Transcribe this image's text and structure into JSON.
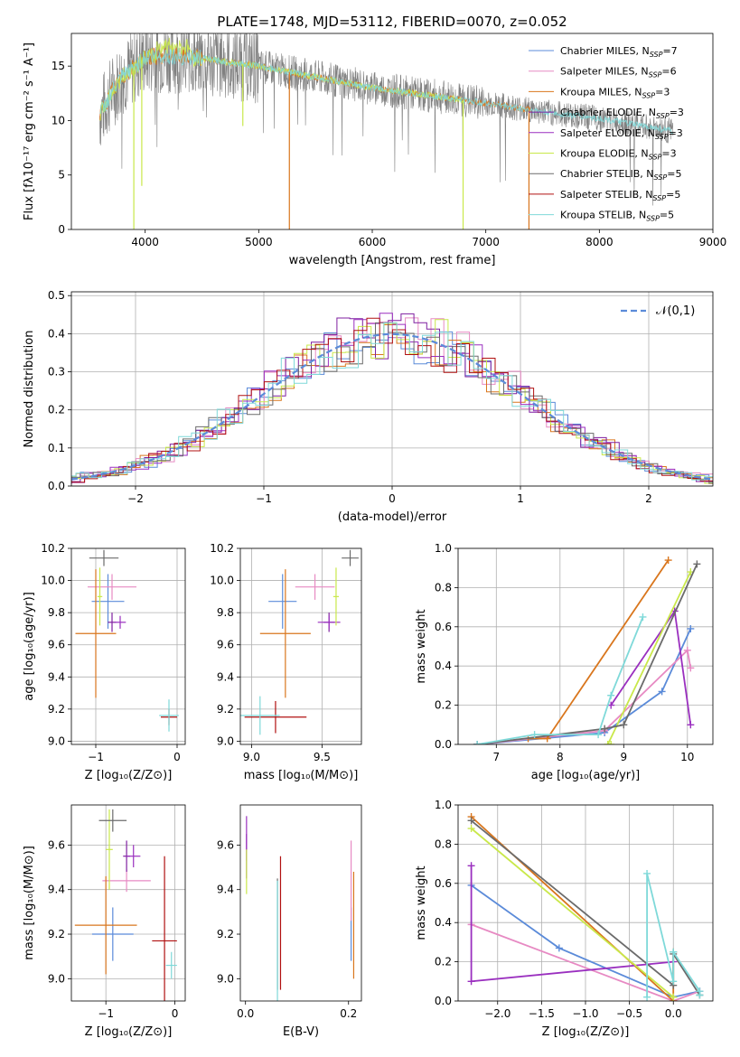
{
  "colors": {
    "Chabrier MILES": "#5b8bd9",
    "Salpeter MILES": "#e78ac3",
    "Kroupa MILES": "#d9761d",
    "Chabrier ELODIE": "#7f1fa0",
    "Salpeter ELODIE": "#9a2fbf",
    "Kroupa ELODIE": "#c9e84a",
    "Chabrier STELIB": "#6b6b6b",
    "Salpeter STELIB": "#b01010",
    "Kroupa STELIB": "#7fd9d9",
    "gaussian": "#5b8bd9"
  },
  "chart_data": [
    {
      "id": "spectrum",
      "type": "line",
      "title": "PLATE=1748, MJD=53112, FIBERID=0070, z=0.052",
      "xlabel": "wavelength [Angstrom, rest frame]",
      "ylabel": "Flux [fλ10⁻¹⁷ erg cm⁻² s⁻¹ A⁻¹]",
      "xlim": [
        3350,
        9000
      ],
      "ylim": [
        0,
        18
      ],
      "xticks": [
        4000,
        5000,
        6000,
        7000,
        8000,
        9000
      ],
      "yticks": [
        0,
        5,
        10,
        15
      ],
      "grid": false,
      "legend": "top-right",
      "series": [
        {
          "name": "Chabrier MILES, N_SSP=7",
          "sub": "SSP",
          "eq": "=7"
        },
        {
          "name": "Salpeter MILES, N_SSP=6",
          "sub": "SSP",
          "eq": "=6"
        },
        {
          "name": "Kroupa MILES, N_SSP=3",
          "sub": "SSP",
          "eq": "=3"
        },
        {
          "name": "Chabrier ELODIE, N_SSP=3",
          "sub": "SSP",
          "eq": "=3"
        },
        {
          "name": "Salpeter ELODIE, N_SSP=3",
          "sub": "SSP",
          "eq": "=3"
        },
        {
          "name": "Kroupa ELODIE, N_SSP=3",
          "sub": "SSP",
          "eq": "=3"
        },
        {
          "name": "Chabrier STELIB, N_SSP=5",
          "sub": "SSP",
          "eq": "=5"
        },
        {
          "name": "Salpeter STELIB, N_SSP=5",
          "sub": "SSP",
          "eq": "=5"
        },
        {
          "name": "Kroupa STELIB, N_SSP=5",
          "sub": "SSP",
          "eq": "=5"
        }
      ],
      "legend_prefix": [
        "Chabrier MILES, N",
        "Salpeter MILES, N",
        "Kroupa MILES, N",
        "Chabrier ELODIE, N",
        "Salpeter ELODIE, N",
        "Kroupa ELODIE, N",
        "Chabrier STELIB, N",
        "Salpeter STELIB, N",
        "Kroupa STELIB, N"
      ],
      "continuum": [
        [
          3600,
          10.5
        ],
        [
          3700,
          12.5
        ],
        [
          3800,
          14
        ],
        [
          4000,
          15.8
        ],
        [
          4200,
          16
        ],
        [
          4500,
          15.7
        ],
        [
          5000,
          15
        ],
        [
          5500,
          14
        ],
        [
          6000,
          13
        ],
        [
          6500,
          12.3
        ],
        [
          7000,
          11.6
        ],
        [
          7500,
          10.8
        ],
        [
          8000,
          10.2
        ],
        [
          8500,
          9.3
        ],
        [
          8650,
          9.0
        ]
      ],
      "dips": [
        [
          3900,
          0
        ],
        [
          3970,
          4
        ],
        [
          4860,
          9.5
        ],
        [
          5270,
          0
        ],
        [
          6800,
          0
        ],
        [
          7380,
          0
        ]
      ]
    },
    {
      "id": "residuals",
      "type": "line",
      "xlabel": "(data-model)/error",
      "ylabel": "Normed distribution",
      "xlim": [
        -2.5,
        2.5
      ],
      "ylim": [
        0,
        0.51
      ],
      "xticks": [
        -2,
        -1,
        0,
        1,
        2
      ],
      "yticks": [
        0.0,
        0.1,
        0.2,
        0.3,
        0.4,
        0.5
      ],
      "grid": true,
      "legend": "top-right",
      "legend_label": "𝒩(0,1)",
      "gaussian": {
        "mean": 0,
        "sigma": 1
      },
      "bin_width": 0.1
    },
    {
      "id": "age-vs-Z",
      "type": "scatter",
      "xlabel": "Z [log₁₀(Z/Z⊙)]",
      "ylabel": "age  [log₁₀(age/yr)]",
      "xlim": [
        -1.3,
        0.1
      ],
      "ylim": [
        8.98,
        10.2
      ],
      "xticks": [
        -1,
        0
      ],
      "yticks": [
        9.0,
        9.2,
        9.4,
        9.6,
        9.8,
        10.0,
        10.2
      ],
      "grid": true,
      "points": [
        {
          "s": "Chabrier MILES",
          "x": -0.85,
          "y": 9.87,
          "xe": 0.2,
          "ye": 0.17
        },
        {
          "s": "Salpeter MILES",
          "x": -0.8,
          "y": 9.96,
          "xe": 0.3,
          "ye": 0.08
        },
        {
          "s": "Kroupa MILES",
          "x": -1.0,
          "y": 9.67,
          "xe": 0.25,
          "ye": 0.4
        },
        {
          "s": "Chabrier ELODIE",
          "x": -0.8,
          "y": 9.74,
          "xe": 0.05,
          "ye": 0.06
        },
        {
          "s": "Salpeter ELODIE",
          "x": -0.7,
          "y": 9.74,
          "xe": 0.07,
          "ye": 0.04
        },
        {
          "s": "Kroupa ELODIE",
          "x": -0.95,
          "y": 9.9,
          "xe": 0.03,
          "ye": 0.18
        },
        {
          "s": "Chabrier STELIB",
          "x": -0.9,
          "y": 10.14,
          "xe": 0.18,
          "ye": 0.05
        },
        {
          "s": "Salpeter STELIB",
          "x": -0.1,
          "y": 9.15,
          "xe": 0.1,
          "ye": 0.05
        },
        {
          "s": "Kroupa STELIB",
          "x": -0.1,
          "y": 9.16,
          "xe": 0.12,
          "ye": 0.1
        }
      ]
    },
    {
      "id": "age-vs-mass",
      "type": "scatter",
      "xlabel": "mass [log₁₀(M/M⊙)]",
      "ylabel": "",
      "xlim": [
        8.92,
        9.78
      ],
      "ylim": [
        8.98,
        10.2
      ],
      "xticks": [
        9.0,
        9.5
      ],
      "yticks": [
        9.0,
        9.2,
        9.4,
        9.6,
        9.8,
        10.0,
        10.2
      ],
      "grid": true,
      "points": [
        {
          "s": "Chabrier MILES",
          "x": 9.22,
          "y": 9.87,
          "xe": 0.1,
          "ye": 0.17
        },
        {
          "s": "Salpeter MILES",
          "x": 9.45,
          "y": 9.96,
          "xe": 0.14,
          "ye": 0.08
        },
        {
          "s": "Kroupa MILES",
          "x": 9.24,
          "y": 9.67,
          "xe": 0.18,
          "ye": 0.4
        },
        {
          "s": "Chabrier ELODIE",
          "x": 9.55,
          "y": 9.74,
          "xe": 0.04,
          "ye": 0.06
        },
        {
          "s": "Salpeter ELODIE",
          "x": 9.55,
          "y": 9.74,
          "xe": 0.08,
          "ye": 0.04
        },
        {
          "s": "Kroupa ELODIE",
          "x": 9.6,
          "y": 9.9,
          "xe": 0.02,
          "ye": 0.18
        },
        {
          "s": "Chabrier STELIB",
          "x": 9.7,
          "y": 10.14,
          "xe": 0.06,
          "ye": 0.05
        },
        {
          "s": "Salpeter STELIB",
          "x": 9.17,
          "y": 9.15,
          "xe": 0.22,
          "ye": 0.1
        },
        {
          "s": "Kroupa STELIB",
          "x": 9.06,
          "y": 9.16,
          "xe": 0.14,
          "ye": 0.12
        }
      ]
    },
    {
      "id": "weight-vs-age",
      "type": "line",
      "xlabel": "age  [log₁₀(age/yr)]",
      "ylabel": "mass weight",
      "xlim": [
        6.4,
        10.4
      ],
      "ylim": [
        0,
        1.0
      ],
      "xticks": [
        7,
        8,
        9,
        10
      ],
      "yticks": [
        0.0,
        0.2,
        0.4,
        0.6,
        0.8,
        1.0
      ],
      "grid": true,
      "series": [
        {
          "s": "Chabrier MILES",
          "x": [
            6.7,
            8.7,
            9.6,
            10.05
          ],
          "y": [
            0.0,
            0.06,
            0.27,
            0.59
          ]
        },
        {
          "s": "Salpeter MILES",
          "x": [
            6.7,
            8.7,
            10.0,
            10.05
          ],
          "y": [
            0.0,
            0.07,
            0.48,
            0.39
          ]
        },
        {
          "s": "Kroupa MILES",
          "x": [
            7.5,
            7.8,
            9.7
          ],
          "y": [
            0.03,
            0.03,
            0.94
          ]
        },
        {
          "s": "Salpeter ELODIE",
          "x": [
            8.8,
            9.8,
            10.05
          ],
          "y": [
            0.2,
            0.68,
            0.1
          ]
        },
        {
          "s": "Kroupa ELODIE",
          "x": [
            8.8,
            8.75,
            10.05
          ],
          "y": [
            0.0,
            0.0,
            0.88
          ]
        },
        {
          "s": "Chabrier STELIB",
          "x": [
            6.7,
            8.7,
            9.0,
            10.15
          ],
          "y": [
            0.0,
            0.08,
            0.1,
            0.92
          ]
        },
        {
          "s": "Kroupa STELIB",
          "x": [
            6.7,
            7.6,
            8.6,
            8.8,
            9.3
          ],
          "y": [
            0.0,
            0.05,
            0.05,
            0.25,
            0.65
          ]
        }
      ]
    },
    {
      "id": "mass-vs-Z",
      "type": "scatter",
      "xlabel": "Z [log₁₀(Z/Z⊙)]",
      "ylabel": "mass [log₁₀(M/M⊙)]",
      "xlim": [
        -1.5,
        0.15
      ],
      "ylim": [
        8.9,
        9.78
      ],
      "xticks": [
        -1,
        0
      ],
      "yticks": [
        9.0,
        9.2,
        9.4,
        9.6
      ],
      "grid": true,
      "points": [
        {
          "s": "Chabrier MILES",
          "x": -0.9,
          "y": 9.2,
          "xe": 0.3,
          "ye": 0.12
        },
        {
          "s": "Salpeter MILES",
          "x": -0.7,
          "y": 9.44,
          "xe": 0.35,
          "ye": 0.05
        },
        {
          "s": "Kroupa MILES",
          "x": -1.0,
          "y": 9.24,
          "xe": 0.45,
          "ye": 0.22
        },
        {
          "s": "Chabrier ELODIE",
          "x": -0.7,
          "y": 9.55,
          "xe": 0.05,
          "ye": 0.07
        },
        {
          "s": "Salpeter ELODIE",
          "x": -0.6,
          "y": 9.55,
          "xe": 0.1,
          "ye": 0.05
        },
        {
          "s": "Kroupa ELODIE",
          "x": -0.95,
          "y": 9.58,
          "xe": 0.05,
          "ye": 0.18
        },
        {
          "s": "Chabrier STELIB",
          "x": -0.9,
          "y": 9.71,
          "xe": 0.2,
          "ye": 0.05
        },
        {
          "s": "Salpeter STELIB",
          "x": -0.15,
          "y": 9.17,
          "xe": 0.18,
          "ye": 0.38
        },
        {
          "s": "Kroupa STELIB",
          "x": -0.05,
          "y": 9.06,
          "xe": 0.08,
          "ye": 0.06
        }
      ]
    },
    {
      "id": "mass-vs-ebv",
      "type": "scatter",
      "xlabel": "E(B-V)",
      "ylabel": "",
      "xlim": [
        -0.01,
        0.225
      ],
      "ylim": [
        8.9,
        9.78
      ],
      "xticks": [
        0.0,
        0.2
      ],
      "yticks": [
        9.0,
        9.2,
        9.4,
        9.6
      ],
      "grid": false,
      "points": [
        {
          "s": "Chabrier MILES",
          "x": 0.205,
          "y": 9.2,
          "xe": 0,
          "ye": 0.12
        },
        {
          "s": "Salpeter MILES",
          "x": 0.205,
          "y": 9.44,
          "xe": 0,
          "ye": 0.18
        },
        {
          "s": "Kroupa MILES",
          "x": 0.21,
          "y": 9.24,
          "xe": 0,
          "ye": 0.24
        },
        {
          "s": "Chabrier ELODIE",
          "x": 0.002,
          "y": 9.55,
          "xe": 0,
          "ye": 0.1
        },
        {
          "s": "Salpeter ELODIE",
          "x": 0.002,
          "y": 9.63,
          "xe": 0,
          "ye": 0.1
        },
        {
          "s": "Kroupa ELODIE",
          "x": 0.002,
          "y": 9.48,
          "xe": 0,
          "ye": 0.1
        },
        {
          "s": "Chabrier STELIB",
          "x": 0.062,
          "y": 9.2,
          "xe": 0,
          "ye": 0.25
        },
        {
          "s": "Salpeter STELIB",
          "x": 0.068,
          "y": 9.25,
          "xe": 0,
          "ye": 0.3
        },
        {
          "s": "Kroupa STELIB",
          "x": 0.062,
          "y": 9.17,
          "xe": 0,
          "ye": 0.27
        }
      ]
    },
    {
      "id": "weight-vs-Z",
      "type": "line",
      "xlabel": "Z [log₁₀(Z/Z⊙)]",
      "ylabel": "mass weight",
      "xlim": [
        -2.45,
        0.45
      ],
      "ylim": [
        0,
        1.0
      ],
      "xticks": [
        -2.0,
        -1.5,
        -1.0,
        -0.5,
        0.0
      ],
      "yticks": [
        0.0,
        0.2,
        0.4,
        0.6,
        0.8,
        1.0
      ],
      "grid": true,
      "series": [
        {
          "s": "Chabrier MILES",
          "x": [
            -2.3,
            -1.3,
            0.0,
            0.3
          ],
          "y": [
            0.59,
            0.27,
            0.02,
            0.05
          ]
        },
        {
          "s": "Salpeter MILES",
          "x": [
            -2.3,
            0.0,
            0.3
          ],
          "y": [
            0.39,
            0.0,
            0.05
          ]
        },
        {
          "s": "Kroupa MILES",
          "x": [
            -2.3,
            0.0,
            0.0
          ],
          "y": [
            0.94,
            0.0,
            0.25
          ]
        },
        {
          "s": "Salpeter ELODIE",
          "x": [
            -2.3,
            -2.3,
            0.0
          ],
          "y": [
            0.69,
            0.1,
            0.2
          ]
        },
        {
          "s": "Kroupa ELODIE",
          "x": [
            -2.3,
            0.0
          ],
          "y": [
            0.88,
            0.02
          ]
        },
        {
          "s": "Chabrier STELIB",
          "x": [
            -2.3,
            0.0,
            0.0,
            0.3
          ],
          "y": [
            0.92,
            0.08,
            0.24,
            0.03
          ]
        },
        {
          "s": "Kroupa STELIB",
          "x": [
            -0.3,
            -0.3,
            0.0,
            0.0,
            0.3,
            0.3
          ],
          "y": [
            0.02,
            0.65,
            0.1,
            0.25,
            0.05,
            0.03
          ]
        }
      ]
    }
  ]
}
